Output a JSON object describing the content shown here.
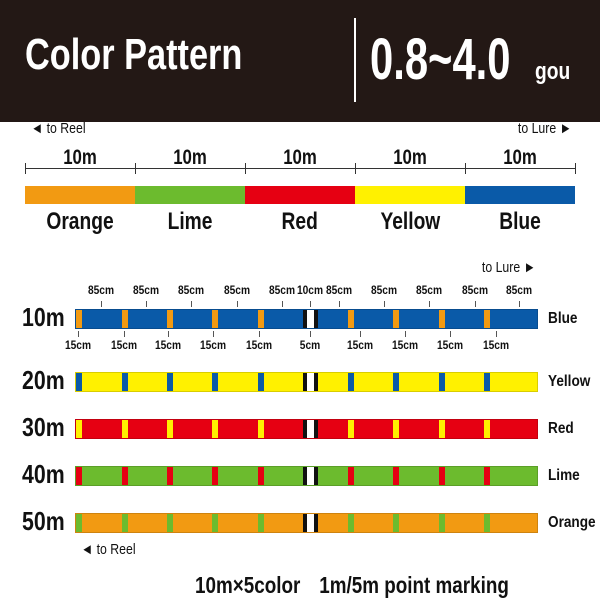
{
  "header": {
    "title": "Color Pattern",
    "range": "0.8~4.0",
    "unit": "gou",
    "background": "#231815"
  },
  "overview": {
    "to_reel": "◄ to Reel",
    "to_lure": "to Lure ►",
    "segments": [
      {
        "length": "10m",
        "name": "Orange",
        "color": "#f29a12"
      },
      {
        "length": "10m",
        "name": "Lime",
        "color": "#6cbb2e"
      },
      {
        "length": "10m",
        "name": "Red",
        "color": "#e60012"
      },
      {
        "length": "10m",
        "name": "Yellow",
        "color": "#fff100"
      },
      {
        "length": "10m",
        "name": "Blue",
        "color": "#0a5aa8"
      }
    ]
  },
  "detail": {
    "to_lure": "to Lure ►",
    "to_reel": "◄ to Reel",
    "top_labels": [
      "85cm",
      "85cm",
      "85cm",
      "85cm",
      "85cm",
      "10cm",
      "85cm",
      "85cm",
      "85cm",
      "85cm",
      "85cm"
    ],
    "bottom_labels": [
      "15cm",
      "15cm",
      "15cm",
      "15cm",
      "15cm",
      "5cm",
      "15cm",
      "15cm",
      "15cm",
      "15cm"
    ],
    "rows": [
      {
        "label": "10m",
        "name": "Blue",
        "base": "#0a5aa8",
        "marker": "#f29a12"
      },
      {
        "label": "20m",
        "name": "Yellow",
        "base": "#fff100",
        "marker": "#0a5aa8"
      },
      {
        "label": "30m",
        "name": "Red",
        "base": "#e60012",
        "marker": "#fff100"
      },
      {
        "label": "40m",
        "name": "Lime",
        "base": "#6cbb2e",
        "marker": "#e60012"
      },
      {
        "label": "50m",
        "name": "Orange",
        "base": "#f29a12",
        "marker": "#6cbb2e"
      }
    ]
  },
  "footer": "10m×5color　1m/5m point marking"
}
